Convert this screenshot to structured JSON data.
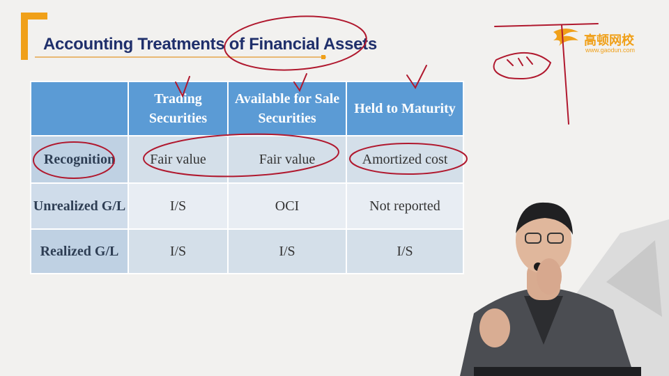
{
  "slide": {
    "title": "Accounting Treatments of Financial Assets"
  },
  "logo": {
    "name": "高顿网校",
    "url": "www.gaodun.com"
  },
  "table": {
    "headers": [
      "",
      "Trading Securities",
      "Available for Sale Securities",
      "Held to Maturity"
    ],
    "rows": [
      {
        "label": "Recognition",
        "cells": [
          "Fair value",
          "Fair value",
          "Amortized cost"
        ]
      },
      {
        "label": "Unrealized G/L",
        "cells": [
          "I/S",
          "OCI",
          "Not reported"
        ]
      },
      {
        "label": "Realized G/L",
        "cells": [
          "I/S",
          "I/S",
          "I/S"
        ]
      }
    ]
  },
  "colors": {
    "title": "#1f2f6b",
    "accent": "#f0a019",
    "header_bg": "#5b9bd5",
    "annotation_ink": "#b0182e"
  }
}
